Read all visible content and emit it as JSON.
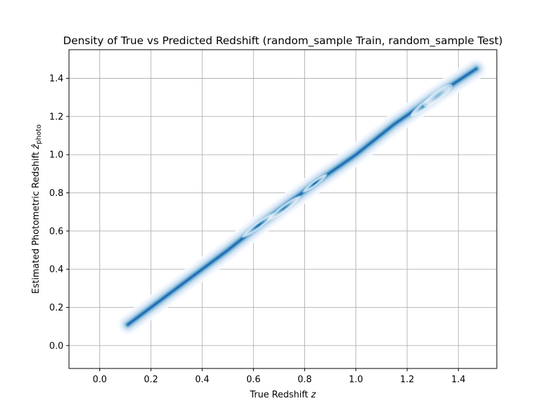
{
  "chart_data": {
    "type": "kde-density",
    "title": "Density of True vs Predicted Redshift (random_sample Train, random_sample Test)",
    "xlabel": {
      "main": "True Redshift ",
      "var": "z"
    },
    "ylabel": {
      "main": "Estimated Photometric Redshift ",
      "var": "ẑ",
      "sub": "photo"
    },
    "xlim": [
      -0.12,
      1.55
    ],
    "ylim": [
      -0.12,
      1.55
    ],
    "xticks": [
      0.0,
      0.2,
      0.4,
      0.6,
      0.8,
      1.0,
      1.2,
      1.4
    ],
    "yticks": [
      0.0,
      0.2,
      0.4,
      0.6,
      0.8,
      1.0,
      1.2,
      1.4
    ],
    "xtick_labels": [
      "0.0",
      "0.2",
      "0.4",
      "0.6",
      "0.8",
      "1.0",
      "1.2",
      "1.4"
    ],
    "ytick_labels": [
      "0.0",
      "0.2",
      "0.4",
      "0.6",
      "0.8",
      "1.0",
      "1.2",
      "1.4"
    ],
    "grid": true,
    "colormap": [
      "#f7fbff",
      "#deebf7",
      "#c6dbef",
      "#9ecae1",
      "#6baed6",
      "#4292c6",
      "#2171b5",
      "#08519c"
    ],
    "density_path": [
      {
        "x": 0.11,
        "y": 0.11
      },
      {
        "x": 0.3,
        "y": 0.3
      },
      {
        "x": 0.5,
        "y": 0.5
      },
      {
        "x": 0.65,
        "y": 0.66
      },
      {
        "x": 0.85,
        "y": 0.86
      },
      {
        "x": 1.0,
        "y": 1.0
      },
      {
        "x": 1.15,
        "y": 1.16
      },
      {
        "x": 1.3,
        "y": 1.3
      },
      {
        "x": 1.47,
        "y": 1.45
      }
    ],
    "density_peaks": [
      {
        "x": 0.62,
        "y": 0.63,
        "rx": 0.08,
        "ry": 0.012,
        "level": 7
      },
      {
        "x": 0.72,
        "y": 0.72,
        "rx": 0.08,
        "ry": 0.012,
        "level": 6
      },
      {
        "x": 0.84,
        "y": 0.85,
        "rx": 0.06,
        "ry": 0.01,
        "level": 7
      },
      {
        "x": 1.27,
        "y": 1.26,
        "rx": 0.07,
        "ry": 0.015,
        "level": 6
      },
      {
        "x": 1.32,
        "y": 1.31,
        "rx": 0.07,
        "ry": 0.018,
        "level": 4
      }
    ]
  }
}
